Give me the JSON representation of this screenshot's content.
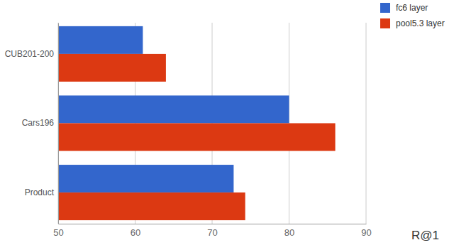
{
  "chart_data": {
    "type": "bar",
    "orientation": "horizontal",
    "categories": [
      "CUB201-200",
      "Cars196",
      "Product"
    ],
    "series": [
      {
        "name": "fc6 layer",
        "color": "#3366cc",
        "values": [
          61,
          80,
          72.8
        ]
      },
      {
        "name": "pool5.3 layer",
        "color": "#dc3912",
        "values": [
          64,
          86,
          74.3
        ]
      }
    ],
    "x_label": "R@1",
    "xlim": [
      50,
      90
    ],
    "xticks": [
      50,
      60,
      70,
      80,
      90
    ],
    "grid": true,
    "legend": "top-right"
  }
}
